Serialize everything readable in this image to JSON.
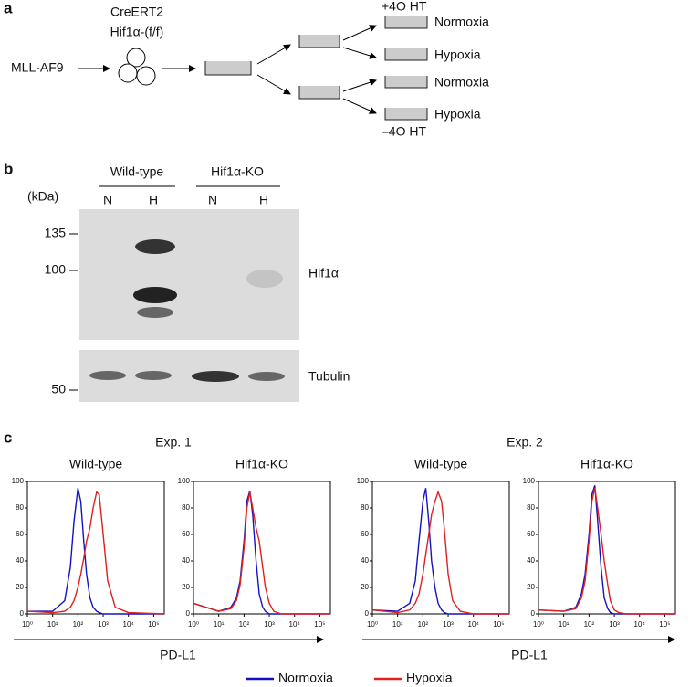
{
  "panel_a": {
    "label": "a",
    "input": "MLL-AF9",
    "cells": [
      "CreERT2",
      "Hif1α-(f/f)"
    ],
    "plus": "+4O HT",
    "minus": "–4O HT",
    "conditions": [
      "Normoxia",
      "Hypoxia",
      "Normoxia",
      "Hypoxia"
    ]
  },
  "panel_b": {
    "label": "b",
    "groups": [
      "Wild-type",
      "Hif1α-KO"
    ],
    "lanes": [
      "N",
      "H",
      "N",
      "H"
    ],
    "unit": "(kDa)",
    "markers": [
      "135",
      "100",
      "50"
    ],
    "blots": [
      "Hif1α",
      "Tubulin"
    ]
  },
  "panel_c": {
    "label": "c",
    "experiments": [
      "Exp. 1",
      "Exp. 2"
    ],
    "axis_label": "PD-L1"
  },
  "chart_data": [
    {
      "type": "line",
      "title": "Wild-type",
      "log_x": true,
      "x": [
        1,
        10,
        30,
        50,
        70,
        100,
        130,
        170,
        220,
        300,
        400,
        550,
        700,
        1000,
        1500,
        3000,
        10000,
        262144
      ],
      "xlim": [
        1,
        262144
      ],
      "ylim": [
        0,
        100
      ],
      "xticks": [
        {
          "value": 1,
          "label": "10⁰"
        },
        {
          "value": 10,
          "label": "10¹"
        },
        {
          "value": 100,
          "label": "10²"
        },
        {
          "value": 1000,
          "label": "10³"
        },
        {
          "value": 10000,
          "label": "10⁴"
        },
        {
          "value": 100000,
          "label": "10⁵"
        }
      ],
      "yticks": [
        0,
        20,
        40,
        60,
        80,
        100
      ],
      "series": [
        {
          "name": "Normoxia",
          "color": "#1212c4",
          "values": [
            2,
            2,
            10,
            35,
            70,
            95,
            85,
            55,
            30,
            12,
            5,
            2,
            1,
            0,
            0,
            0,
            0,
            0
          ]
        },
        {
          "name": "Hypoxia",
          "color": "#e0201f",
          "values": [
            2,
            1,
            2,
            5,
            10,
            20,
            30,
            42,
            55,
            65,
            80,
            92,
            90,
            60,
            25,
            5,
            1,
            0
          ]
        }
      ]
    },
    {
      "type": "line",
      "title": "Hif1α-KO",
      "log_x": true,
      "x": [
        1,
        10,
        30,
        50,
        70,
        100,
        130,
        170,
        220,
        300,
        400,
        550,
        700,
        1000,
        1500,
        3000,
        10000,
        262144
      ],
      "xlim": [
        1,
        262144
      ],
      "ylim": [
        0,
        100
      ],
      "xticks": [
        {
          "value": 1,
          "label": "10⁰"
        },
        {
          "value": 10,
          "label": "10¹"
        },
        {
          "value": 100,
          "label": "10²"
        },
        {
          "value": 1000,
          "label": "10³"
        },
        {
          "value": 10000,
          "label": "10⁴"
        },
        {
          "value": 100000,
          "label": "10⁵"
        }
      ],
      "yticks": [
        0,
        20,
        40,
        60,
        80,
        100
      ],
      "series": [
        {
          "name": "Normoxia",
          "color": "#1212c4",
          "values": [
            8,
            2,
            5,
            12,
            25,
            55,
            85,
            93,
            75,
            40,
            15,
            5,
            2,
            0,
            0,
            0,
            0,
            0
          ]
        },
        {
          "name": "Hypoxia",
          "color": "#e0201f",
          "values": [
            8,
            2,
            4,
            10,
            22,
            50,
            80,
            92,
            80,
            65,
            55,
            35,
            20,
            8,
            2,
            0,
            0,
            0
          ]
        }
      ]
    },
    {
      "type": "line",
      "title": "Wild-type",
      "log_x": true,
      "x": [
        1,
        10,
        30,
        50,
        70,
        100,
        130,
        170,
        220,
        300,
        400,
        550,
        700,
        1000,
        1500,
        3000,
        10000,
        262144
      ],
      "xlim": [
        1,
        262144
      ],
      "ylim": [
        0,
        100
      ],
      "xticks": [
        {
          "value": 1,
          "label": "10⁰"
        },
        {
          "value": 10,
          "label": "10¹"
        },
        {
          "value": 100,
          "label": "10²"
        },
        {
          "value": 1000,
          "label": "10³"
        },
        {
          "value": 10000,
          "label": "10⁴"
        },
        {
          "value": 100000,
          "label": "10⁵"
        }
      ],
      "yticks": [
        0,
        20,
        40,
        60,
        80,
        100
      ],
      "series": [
        {
          "name": "Normoxia",
          "color": "#1212c4",
          "values": [
            3,
            2,
            8,
            25,
            55,
            85,
            95,
            70,
            40,
            20,
            8,
            3,
            1,
            0,
            0,
            0,
            0,
            0
          ]
        },
        {
          "name": "Hypoxia",
          "color": "#e0201f",
          "values": [
            3,
            1,
            3,
            8,
            15,
            30,
            45,
            60,
            75,
            85,
            92,
            85,
            65,
            30,
            10,
            2,
            0,
            0
          ]
        }
      ]
    },
    {
      "type": "line",
      "title": "Hif1α-KO",
      "log_x": true,
      "x": [
        1,
        10,
        30,
        50,
        70,
        100,
        130,
        170,
        220,
        300,
        400,
        550,
        700,
        1000,
        1500,
        3000,
        10000,
        262144
      ],
      "xlim": [
        1,
        262144
      ],
      "ylim": [
        0,
        100
      ],
      "xticks": [
        {
          "value": 1,
          "label": "10⁰"
        },
        {
          "value": 10,
          "label": "10¹"
        },
        {
          "value": 100,
          "label": "10²"
        },
        {
          "value": 1000,
          "label": "10³"
        },
        {
          "value": 10000,
          "label": "10⁴"
        },
        {
          "value": 100000,
          "label": "10⁵"
        }
      ],
      "yticks": [
        0,
        20,
        40,
        60,
        80,
        100
      ],
      "series": [
        {
          "name": "Normoxia",
          "color": "#1212c4",
          "values": [
            3,
            2,
            5,
            15,
            30,
            60,
            90,
            97,
            70,
            35,
            12,
            4,
            1,
            0,
            0,
            0,
            0,
            0
          ]
        },
        {
          "name": "Hypoxia",
          "color": "#e0201f",
          "values": [
            3,
            2,
            4,
            12,
            25,
            55,
            85,
            95,
            80,
            60,
            40,
            22,
            10,
            3,
            1,
            0,
            0,
            0
          ]
        }
      ]
    }
  ]
}
